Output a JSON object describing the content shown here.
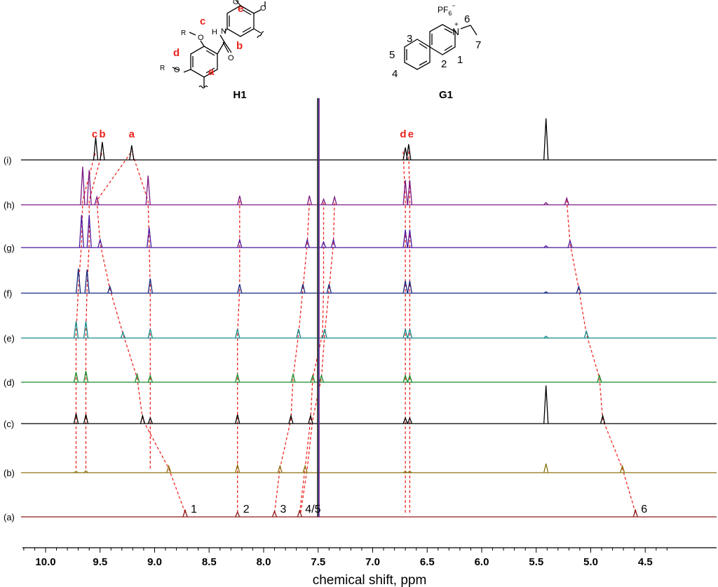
{
  "colors": {
    "red_label": "#e8221b",
    "dash": "#ee2a24",
    "axis": "#000000"
  },
  "structures": {
    "host": {
      "name": "H1",
      "labels": [
        "a",
        "b",
        "c",
        "d",
        "e"
      ],
      "substituent": "R",
      "heteroatoms": [
        "O",
        "O",
        "O",
        "O",
        "N",
        "H",
        "O"
      ]
    },
    "guest": {
      "name": "G1",
      "counterion_base": "PF",
      "counterion_sub": "6",
      "counterion_charge": "−",
      "cation_charge": "+",
      "nitrogen": "N",
      "numbers": [
        "1",
        "2",
        "3",
        "4",
        "5",
        "6",
        "7"
      ]
    }
  },
  "chart_data": {
    "type": "nmr_stacked_spectra",
    "xlabel": "chemical shift, ppm",
    "xlim": [
      10.2,
      4.3
    ],
    "x_reversed": true,
    "xticks": [
      10.0,
      9.5,
      9.0,
      8.5,
      8.0,
      7.5,
      7.0,
      6.5,
      6.0,
      5.5,
      5.0,
      4.5
    ],
    "xtick_labels": [
      "10.0",
      "9.5",
      "9.0",
      "8.5",
      "8.0",
      "7.5",
      "7.0",
      "6.5",
      "6.0",
      "5.5",
      "5.0",
      "4.5"
    ],
    "solvent_peak_ppm": 7.5,
    "series": [
      {
        "name": "(a)",
        "color": "#8b1a1a",
        "peaks": [
          {
            "ppm": 8.72,
            "h": 0.3
          },
          {
            "ppm": 8.24,
            "h": 0.22
          },
          {
            "ppm": 7.9,
            "h": 0.25
          },
          {
            "ppm": 7.67,
            "h": 0.28
          },
          {
            "ppm": 4.59,
            "h": 0.3
          }
        ],
        "annotations": [
          {
            "ppm": 8.72,
            "text": "1"
          },
          {
            "ppm": 8.24,
            "text": "2"
          },
          {
            "ppm": 7.9,
            "text": "3"
          },
          {
            "ppm": 7.67,
            "text": "4/5"
          },
          {
            "ppm": 4.59,
            "text": "6"
          }
        ]
      },
      {
        "name": "(b)",
        "color": "#8b7310",
        "peaks": [
          {
            "ppm": 9.72,
            "h": 0.06
          },
          {
            "ppm": 9.63,
            "h": 0.08
          },
          {
            "ppm": 8.87,
            "h": 0.3
          },
          {
            "ppm": 8.24,
            "h": 0.35
          },
          {
            "ppm": 7.85,
            "h": 0.3
          },
          {
            "ppm": 7.62,
            "h": 0.3
          },
          {
            "ppm": 6.7,
            "h": 0.06
          },
          {
            "ppm": 6.66,
            "h": 0.06
          },
          {
            "ppm": 5.41,
            "h": 0.4
          },
          {
            "ppm": 4.71,
            "h": 0.3
          }
        ]
      },
      {
        "name": "(c)",
        "color": "#000000",
        "peaks": [
          {
            "ppm": 9.72,
            "h": 0.45
          },
          {
            "ppm": 9.63,
            "h": 0.4
          },
          {
            "ppm": 9.11,
            "h": 0.35
          },
          {
            "ppm": 9.04,
            "h": 0.25
          },
          {
            "ppm": 8.24,
            "h": 0.4
          },
          {
            "ppm": 7.75,
            "h": 0.35
          },
          {
            "ppm": 7.57,
            "h": 0.35
          },
          {
            "ppm": 6.7,
            "h": 0.25
          },
          {
            "ppm": 6.66,
            "h": 0.25
          },
          {
            "ppm": 5.41,
            "h": 1.7
          },
          {
            "ppm": 4.89,
            "h": 0.35
          }
        ]
      },
      {
        "name": "(d)",
        "color": "#1a8c2c",
        "peaks": [
          {
            "ppm": 9.72,
            "h": 0.45
          },
          {
            "ppm": 9.63,
            "h": 0.5
          },
          {
            "ppm": 9.16,
            "h": 0.35
          },
          {
            "ppm": 9.04,
            "h": 0.3
          },
          {
            "ppm": 8.24,
            "h": 0.35
          },
          {
            "ppm": 7.73,
            "h": 0.35
          },
          {
            "ppm": 7.55,
            "h": 0.3
          },
          {
            "ppm": 7.47,
            "h": 0.3
          },
          {
            "ppm": 6.7,
            "h": 0.3
          },
          {
            "ppm": 6.66,
            "h": 0.3
          },
          {
            "ppm": 4.92,
            "h": 0.3
          }
        ]
      },
      {
        "name": "(e)",
        "color": "#17898b",
        "peaks": [
          {
            "ppm": 9.72,
            "h": 0.75
          },
          {
            "ppm": 9.63,
            "h": 0.75
          },
          {
            "ppm": 9.29,
            "h": 0.25
          },
          {
            "ppm": 9.04,
            "h": 0.4
          },
          {
            "ppm": 8.24,
            "h": 0.4
          },
          {
            "ppm": 7.68,
            "h": 0.4
          },
          {
            "ppm": 7.44,
            "h": 0.4
          },
          {
            "ppm": 6.7,
            "h": 0.4
          },
          {
            "ppm": 6.66,
            "h": 0.4
          },
          {
            "ppm": 5.41,
            "h": 0.08
          },
          {
            "ppm": 5.04,
            "h": 0.3
          }
        ]
      },
      {
        "name": "(f)",
        "color": "#16287e",
        "peaks": [
          {
            "ppm": 9.7,
            "h": 1.1
          },
          {
            "ppm": 9.62,
            "h": 1.05
          },
          {
            "ppm": 9.41,
            "h": 0.3
          },
          {
            "ppm": 9.04,
            "h": 0.65
          },
          {
            "ppm": 8.22,
            "h": 0.4
          },
          {
            "ppm": 7.64,
            "h": 0.4
          },
          {
            "ppm": 7.4,
            "h": 0.4
          },
          {
            "ppm": 6.7,
            "h": 0.55
          },
          {
            "ppm": 6.66,
            "h": 0.55
          },
          {
            "ppm": 5.41,
            "h": 0.06
          },
          {
            "ppm": 5.11,
            "h": 0.3
          }
        ]
      },
      {
        "name": "(g)",
        "color": "#4a179c",
        "peaks": [
          {
            "ppm": 9.67,
            "h": 1.45
          },
          {
            "ppm": 9.6,
            "h": 1.45
          },
          {
            "ppm": 9.5,
            "h": 0.35
          },
          {
            "ppm": 9.05,
            "h": 0.9
          },
          {
            "ppm": 8.22,
            "h": 0.35
          },
          {
            "ppm": 7.6,
            "h": 0.35
          },
          {
            "ppm": 7.45,
            "h": 0.25
          },
          {
            "ppm": 7.36,
            "h": 0.35
          },
          {
            "ppm": 6.7,
            "h": 0.8
          },
          {
            "ppm": 6.66,
            "h": 0.8
          },
          {
            "ppm": 5.41,
            "h": 0.08
          },
          {
            "ppm": 5.19,
            "h": 0.3
          }
        ]
      },
      {
        "name": "(h)",
        "color": "#7a1780",
        "peaks": [
          {
            "ppm": 9.66,
            "h": 1.7
          },
          {
            "ppm": 9.6,
            "h": 1.55
          },
          {
            "ppm": 9.53,
            "h": 0.35
          },
          {
            "ppm": 9.06,
            "h": 1.3
          },
          {
            "ppm": 8.22,
            "h": 0.4
          },
          {
            "ppm": 7.58,
            "h": 0.4
          },
          {
            "ppm": 7.45,
            "h": 0.25
          },
          {
            "ppm": 7.35,
            "h": 0.35
          },
          {
            "ppm": 6.7,
            "h": 1.1
          },
          {
            "ppm": 6.66,
            "h": 1.1
          },
          {
            "ppm": 5.41,
            "h": 0.1
          },
          {
            "ppm": 5.22,
            "h": 0.3
          }
        ]
      },
      {
        "name": "(i)",
        "color": "#000000",
        "peaks": [
          {
            "ppm": 9.54,
            "h": 1.0
          },
          {
            "ppm": 9.48,
            "h": 0.8
          },
          {
            "ppm": 9.21,
            "h": 0.65
          },
          {
            "ppm": 6.7,
            "h": 0.55
          },
          {
            "ppm": 6.67,
            "h": 0.7
          },
          {
            "ppm": 5.41,
            "h": 1.85
          }
        ],
        "annotations": [
          {
            "ppm": 9.55,
            "text": "c",
            "red": true
          },
          {
            "ppm": 9.48,
            "text": "b",
            "red": true
          },
          {
            "ppm": 9.21,
            "text": "a",
            "red": true
          },
          {
            "ppm": 6.72,
            "text": "d",
            "red": true
          },
          {
            "ppm": 6.65,
            "text": "e",
            "red": true
          }
        ]
      }
    ],
    "correlation_lines": [
      [
        [
          0,
          8.72
        ],
        [
          1,
          8.87
        ],
        [
          2,
          9.11
        ],
        [
          3,
          9.16
        ],
        [
          4,
          9.29
        ],
        [
          5,
          9.41
        ],
        [
          6,
          9.5
        ],
        [
          7,
          9.53
        ],
        [
          8,
          9.21
        ]
      ],
      [
        [
          0,
          8.24
        ],
        [
          1,
          8.24
        ],
        [
          2,
          8.24
        ],
        [
          3,
          8.24
        ],
        [
          4,
          8.24
        ],
        [
          5,
          8.22
        ],
        [
          6,
          8.22
        ],
        [
          7,
          8.22
        ]
      ],
      [
        [
          0,
          7.9
        ],
        [
          1,
          7.85
        ],
        [
          2,
          7.75
        ],
        [
          3,
          7.73
        ],
        [
          4,
          7.68
        ],
        [
          5,
          7.64
        ],
        [
          6,
          7.6
        ],
        [
          7,
          7.58
        ]
      ],
      [
        [
          0,
          7.67
        ],
        [
          1,
          7.62
        ],
        [
          2,
          7.57
        ],
        [
          3,
          7.55
        ],
        [
          4,
          7.46
        ],
        [
          5,
          7.45
        ],
        [
          6,
          7.45
        ],
        [
          7,
          7.45
        ]
      ],
      [
        [
          0,
          7.66
        ],
        [
          1,
          7.6
        ],
        [
          2,
          7.55
        ],
        [
          3,
          7.47
        ],
        [
          4,
          7.44
        ],
        [
          5,
          7.4
        ],
        [
          6,
          7.36
        ],
        [
          7,
          7.35
        ]
      ],
      [
        [
          0,
          4.59
        ],
        [
          1,
          4.71
        ],
        [
          2,
          4.89
        ],
        [
          3,
          4.92
        ],
        [
          4,
          5.04
        ],
        [
          5,
          5.11
        ],
        [
          6,
          5.19
        ],
        [
          7,
          5.22
        ]
      ],
      [
        [
          1,
          9.72
        ],
        [
          2,
          9.72
        ],
        [
          3,
          9.72
        ],
        [
          4,
          9.72
        ],
        [
          5,
          9.7
        ],
        [
          6,
          9.67
        ],
        [
          7,
          9.66
        ],
        [
          8,
          9.54
        ]
      ],
      [
        [
          1,
          9.63
        ],
        [
          2,
          9.63
        ],
        [
          3,
          9.63
        ],
        [
          4,
          9.63
        ],
        [
          5,
          9.62
        ],
        [
          6,
          9.6
        ],
        [
          7,
          9.6
        ],
        [
          8,
          9.48
        ]
      ],
      [
        [
          1,
          9.04
        ],
        [
          2,
          9.04
        ],
        [
          3,
          9.04
        ],
        [
          4,
          9.04
        ],
        [
          5,
          9.04
        ],
        [
          6,
          9.05
        ],
        [
          7,
          9.06
        ],
        [
          8,
          9.21
        ]
      ],
      [
        [
          0,
          6.7
        ],
        [
          1,
          6.7
        ],
        [
          2,
          6.7
        ],
        [
          3,
          6.7
        ],
        [
          4,
          6.7
        ],
        [
          5,
          6.7
        ],
        [
          6,
          6.7
        ],
        [
          7,
          6.7
        ],
        [
          8,
          6.72
        ]
      ],
      [
        [
          0,
          6.66
        ],
        [
          1,
          6.66
        ],
        [
          2,
          6.66
        ],
        [
          3,
          6.66
        ],
        [
          4,
          6.66
        ],
        [
          5,
          6.66
        ],
        [
          6,
          6.66
        ],
        [
          7,
          6.66
        ],
        [
          8,
          6.67
        ]
      ]
    ]
  }
}
